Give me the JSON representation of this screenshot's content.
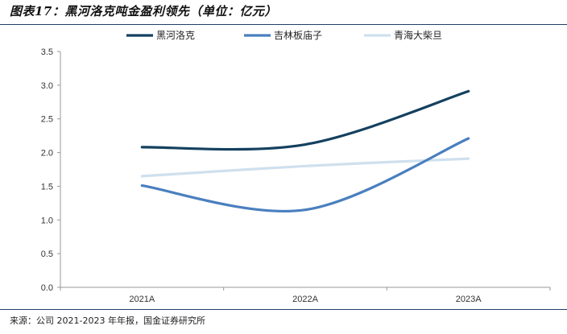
{
  "figure_title": "图表17：黑河洛克吨金盈利领先（单位：亿元）",
  "source_note": "来源：公司 2021-2023 年年报，国金证券研究所",
  "chart_data": {
    "type": "line",
    "categories": [
      "2021A",
      "2022A",
      "2023A"
    ],
    "series": [
      {
        "name": "黑河洛克",
        "values": [
          2.08,
          2.12,
          2.91
        ],
        "color": "#14405f"
      },
      {
        "name": "吉林板庙子",
        "values": [
          1.51,
          1.15,
          2.21
        ],
        "color": "#4a7fbf"
      },
      {
        "name": "青海大柴旦",
        "values": [
          1.65,
          1.8,
          1.91
        ],
        "color": "#cfe0ee"
      }
    ],
    "yticks": [
      "0.0",
      "0.5",
      "1.0",
      "1.5",
      "2.0",
      "2.5",
      "3.0",
      "3.5"
    ],
    "ylim": [
      0,
      3.5
    ],
    "legend_position": "top",
    "grid": false
  }
}
